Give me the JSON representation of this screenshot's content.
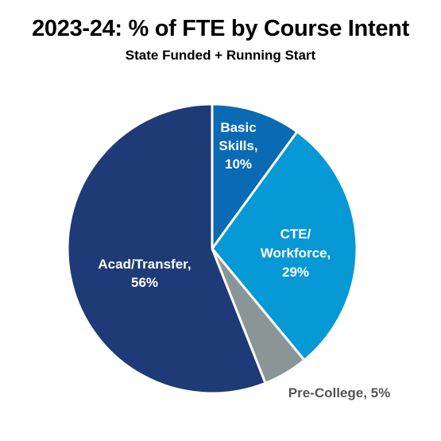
{
  "chart_data": {
    "type": "pie",
    "title": "2023-24: % of FTE by Course Intent",
    "subtitle": "State Funded + Running Start",
    "slices": [
      {
        "label_lines": [
          "Basic",
          "Skills,",
          "10%"
        ],
        "value": 10,
        "color": "#0a6ab4"
      },
      {
        "label_lines": [
          "CTE/",
          "Workforce,",
          "29%"
        ],
        "value": 29,
        "color": "#0798d6"
      },
      {
        "label_lines": [
          "Pre-College, 5%"
        ],
        "value": 5,
        "color": "#8a9696"
      },
      {
        "label_lines": [
          "Acad/Transfer,",
          "56%"
        ],
        "value": 56,
        "color": "#1e3b77"
      }
    ]
  }
}
